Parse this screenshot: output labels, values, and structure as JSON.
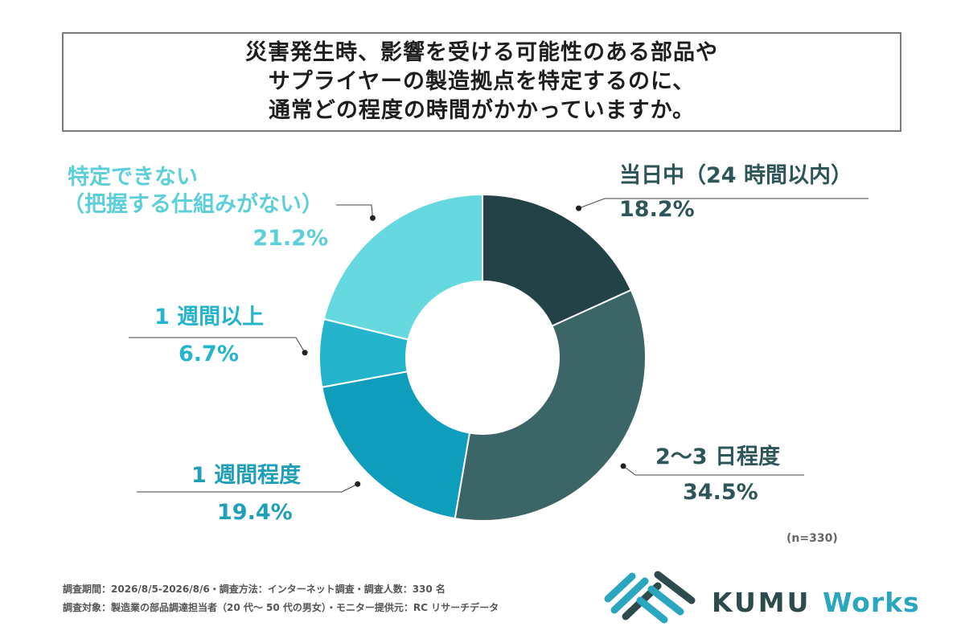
{
  "title": {
    "lines": [
      "災害発生時、影響を受ける可能性のある部品や",
      "サプライヤーの製造拠点を特定するのに、",
      "通常どの程度の時間がかかっていますか。"
    ]
  },
  "chart_data": {
    "type": "pie",
    "variant": "donut",
    "title": "災害発生時、影響を受ける可能性のある部品やサプライヤーの製造拠点を特定するのに、通常どの程度の時間がかかっていますか。",
    "slices": [
      {
        "label": "当日中（24 時間以内）",
        "value": 18.2,
        "value_label": "18.2%",
        "color": "#234247"
      },
      {
        "label": "2〜3 日程度",
        "value": 34.5,
        "value_label": "34.5%",
        "color": "#3c6567"
      },
      {
        "label": "1 週間程度",
        "value": 19.4,
        "value_label": "19.4%",
        "color": "#0e9dbb"
      },
      {
        "label": "1 週間以上",
        "value": 6.7,
        "value_label": "6.7%",
        "color": "#24b4cb"
      },
      {
        "label": "特定できない（把握する仕組みがない）",
        "label_lines": [
          "特定できない",
          "（把握する仕組みがない）"
        ],
        "value": 21.2,
        "value_label": "21.2%",
        "color": "#66d8df"
      }
    ],
    "n_note": "(n=330)"
  },
  "label_colors": {
    "dark": "#2e5558",
    "blue": "#1f9fb8",
    "light": "#5ccfd8"
  },
  "footer": {
    "line1": "調査期間：2026/8/5-2026/8/6・調査方法：インターネット調査・調査人数：330 名",
    "line2": "調査対象：製造業の部品調達担当者（20 代〜 50 代の男女）・モニター提供元：RC リサーチデータ"
  },
  "logo": {
    "brand": "KUMU",
    "suffix": "Works",
    "colors": {
      "dark": "#2d4a4d",
      "accent": "#2aa6be"
    }
  }
}
